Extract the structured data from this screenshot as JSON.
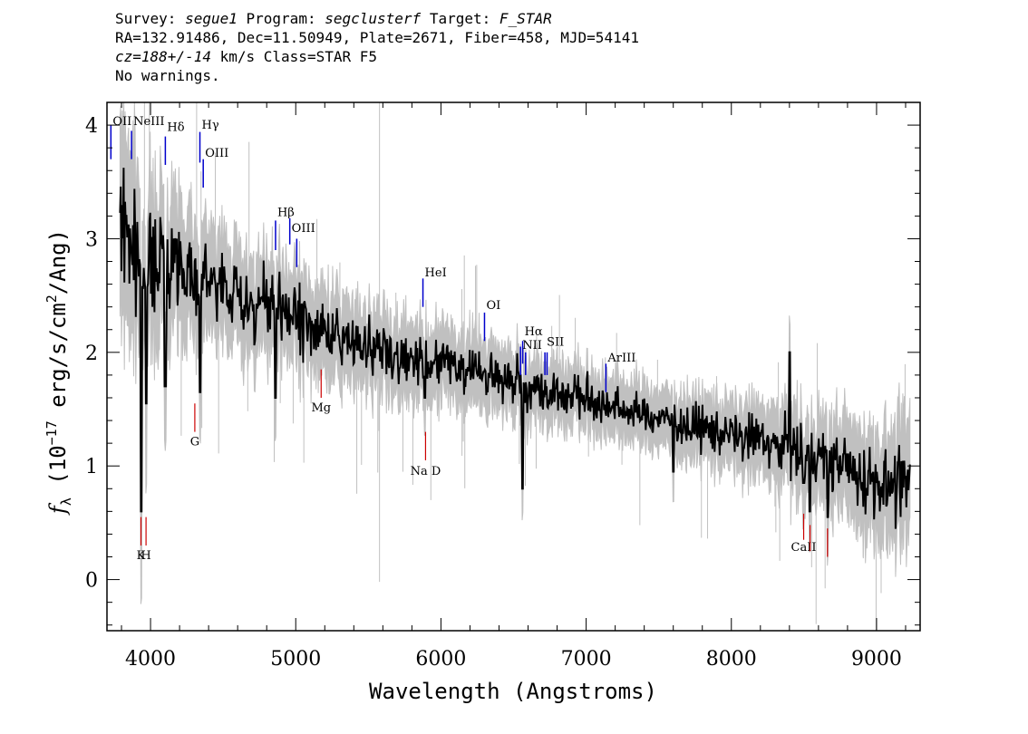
{
  "header": {
    "survey_label": "Survey:",
    "survey": "segue1",
    "program_label": "Program:",
    "program": "segclusterf",
    "target_label": "Target:",
    "target": "F_STAR",
    "line2": "RA=132.91486, Dec=11.50949, Plate=2671, Fiber=458, MJD=54141",
    "cz": "cz=188+/-14",
    "cz_units": "km/s Class=STAR F5",
    "warnings": "No warnings."
  },
  "chart_data": {
    "type": "line",
    "xlabel": "Wavelength (Angstroms)",
    "ylabel": "f_λ (10^-17 erg/s/cm^2/Ang)",
    "ylabel_parts": {
      "f": "f",
      "sub": "λ",
      "open": " (10",
      "exp1": "−17",
      "mid": " erg/s/cm",
      "exp2": "2",
      "close": "/Ang)"
    },
    "xlim": [
      3700,
      9300
    ],
    "ylim": [
      -0.45,
      4.2
    ],
    "xticks": [
      4000,
      5000,
      6000,
      7000,
      8000,
      9000
    ],
    "xtick_labels": [
      "4000",
      "5000",
      "6000",
      "7000",
      "8000",
      "9000"
    ],
    "yticks": [
      0,
      1,
      2,
      3,
      4
    ],
    "ytick_labels": [
      "0",
      "1",
      "2",
      "3",
      "4"
    ],
    "colors": {
      "flux": "#000000",
      "error_band": "#c0c0c0",
      "emission": "#0000cc",
      "absorption": "#cc0000"
    },
    "series": [
      {
        "role": "flux",
        "x": [
          3800,
          3850,
          3900,
          3950,
          4000,
          4050,
          4100,
          4150,
          4200,
          4250,
          4300,
          4350,
          4400,
          4450,
          4500,
          4600,
          4700,
          4800,
          4900,
          5000,
          5100,
          5200,
          5300,
          5400,
          5500,
          5600,
          5700,
          5800,
          5900,
          6000,
          6100,
          6200,
          6300,
          6400,
          6500,
          6600,
          6700,
          6800,
          6900,
          7000,
          7100,
          7200,
          7300,
          7400,
          7500,
          7600,
          7700,
          7800,
          7900,
          8000,
          8100,
          8200,
          8300,
          8400,
          8500,
          8600,
          8700,
          8800,
          8900,
          9000,
          9100,
          9200
        ],
        "y": [
          3.0,
          3.1,
          2.85,
          2.7,
          2.75,
          2.85,
          2.9,
          2.8,
          2.85,
          2.75,
          2.7,
          2.65,
          2.65,
          2.6,
          2.55,
          2.5,
          2.45,
          2.4,
          2.35,
          2.3,
          2.25,
          2.2,
          2.15,
          2.1,
          2.05,
          2.0,
          1.97,
          1.95,
          1.92,
          1.9,
          1.87,
          1.84,
          1.82,
          1.78,
          1.74,
          1.7,
          1.68,
          1.65,
          1.62,
          1.58,
          1.55,
          1.52,
          1.49,
          1.46,
          1.43,
          1.4,
          1.37,
          1.34,
          1.31,
          1.28,
          1.25,
          1.22,
          1.18,
          1.14,
          1.1,
          1.06,
          1.02,
          0.98,
          0.92,
          0.88,
          0.84,
          0.82
        ]
      },
      {
        "role": "error_band",
        "x": [
          3800,
          4000,
          4500,
          5000,
          5500,
          6000,
          6500,
          7000,
          7500,
          8000,
          8500,
          9000,
          9200
        ],
        "y": [
          0.7,
          0.5,
          0.35,
          0.3,
          0.27,
          0.25,
          0.22,
          0.2,
          0.2,
          0.22,
          0.28,
          0.35,
          0.4
        ]
      }
    ],
    "dips": [
      {
        "x": 3934,
        "y": 0.6
      },
      {
        "x": 3969,
        "y": 1.55
      },
      {
        "x": 4102,
        "y": 1.7
      },
      {
        "x": 4341,
        "y": 1.65
      },
      {
        "x": 4861,
        "y": 1.6
      },
      {
        "x": 5890,
        "y": 1.6
      },
      {
        "x": 6563,
        "y": 0.8
      },
      {
        "x": 7600,
        "y": 0.95
      },
      {
        "x": 8498,
        "y": 0.85
      },
      {
        "x": 8542,
        "y": 0.6
      },
      {
        "x": 8662,
        "y": 0.55
      }
    ],
    "spike": {
      "x": 8400,
      "y": 2.0
    },
    "sky_line": {
      "x": 5577
    },
    "emission_lines": [
      {
        "name": "OII",
        "x": 3727,
        "y_label": 4.0,
        "y1": 3.7,
        "y2": 4.0
      },
      {
        "name": "NeIII",
        "x": 3869,
        "y_label": 4.0,
        "y1": 3.7,
        "y2": 3.95
      },
      {
        "name": "Hδ",
        "x": 4102,
        "y_label": 3.95,
        "y1": 3.65,
        "y2": 3.9
      },
      {
        "name": "Hγ",
        "x": 4340,
        "y_label": 3.97,
        "y1": 3.67,
        "y2": 3.94
      },
      {
        "name": "OIII",
        "x": 4363,
        "y_label": 3.72,
        "y1": 3.45,
        "y2": 3.7
      },
      {
        "name": "Hβ",
        "x": 4861,
        "y_label": 3.2,
        "y1": 2.9,
        "y2": 3.16
      },
      {
        "name": "OIII",
        "x": 4959,
        "y_label": 3.06,
        "y1": 2.95,
        "y2": 3.18
      },
      {
        "name": "OIII",
        "x": 5007,
        "y_label": 3.06,
        "y1": 2.75,
        "y2": 3.0
      },
      {
        "name": "HeI",
        "x": 5876,
        "y_label": 2.67,
        "y1": 2.4,
        "y2": 2.65
      },
      {
        "name": "OI",
        "x": 6300,
        "y_label": 2.38,
        "y1": 2.1,
        "y2": 2.35
      },
      {
        "name": "NII",
        "x": 6548,
        "y_label": 2.03,
        "y1": 1.8,
        "y2": 2.05
      },
      {
        "name": "Hα",
        "x": 6563,
        "y_label": 2.15,
        "y1": 1.9,
        "y2": 2.1
      },
      {
        "name": "NII",
        "x": 6583,
        "y_label": 2.03,
        "y1": 1.8,
        "y2": 2.0
      },
      {
        "name": "SII",
        "x": 6716,
        "y_label": 2.06,
        "y1": 1.8,
        "y2": 2.0
      },
      {
        "name": "SII",
        "x": 6731,
        "y_label": 2.06,
        "y1": 1.8,
        "y2": 2.0
      },
      {
        "name": "ArIII",
        "x": 7136,
        "y_label": 1.92,
        "y1": 1.65,
        "y2": 1.9
      }
    ],
    "absorption_lines": [
      {
        "name": "K",
        "x": 3934,
        "y_label": 0.18,
        "y1": 0.3,
        "y2": 0.55
      },
      {
        "name": "H",
        "x": 3969,
        "y_label": 0.18,
        "y1": 0.3,
        "y2": 0.55
      },
      {
        "name": "G",
        "x": 4305,
        "y_label": 1.18,
        "y1": 1.3,
        "y2": 1.55
      },
      {
        "name": "Mg",
        "x": 5175,
        "y_label": 1.48,
        "y1": 1.6,
        "y2": 1.85
      },
      {
        "name": "Na D",
        "x": 5894,
        "y_label": 0.92,
        "y1": 1.05,
        "y2": 1.3
      },
      {
        "name": "CaII",
        "x": 8498,
        "y_label": 0.25,
        "y1": 0.35,
        "y2": 0.58
      },
      {
        "name": "CaII",
        "x": 8542,
        "y_label": 0.25,
        "y1": 0.25,
        "y2": 0.48
      },
      {
        "name": "CaII",
        "x": 8662,
        "y_label": 0.25,
        "y1": 0.2,
        "y2": 0.45
      }
    ]
  }
}
